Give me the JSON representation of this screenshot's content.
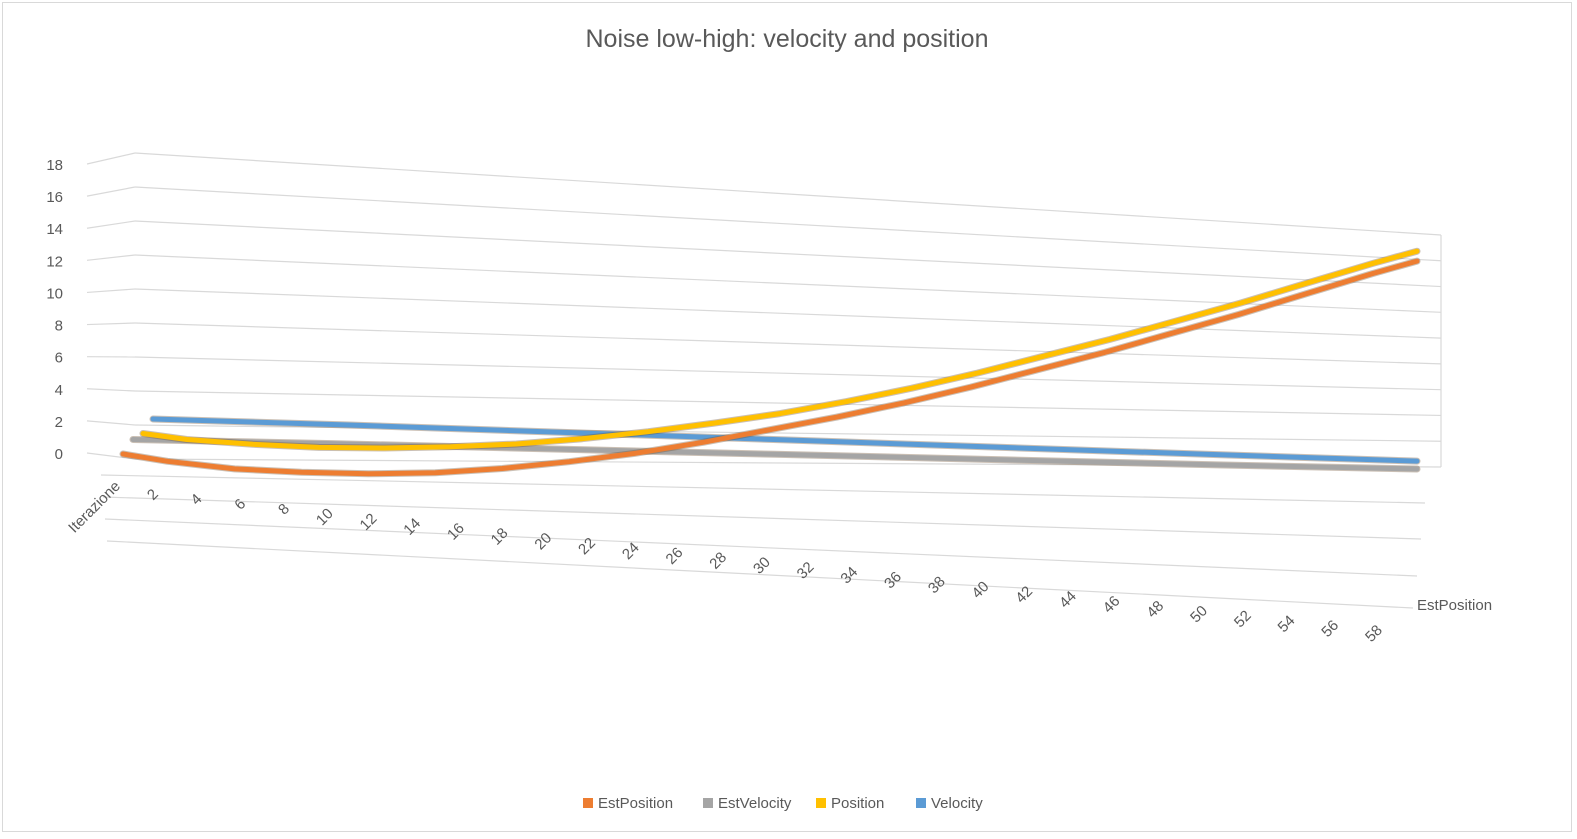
{
  "chart_data": {
    "type": "line",
    "variant": "3d-line",
    "title": "Noise low-high: velocity and position",
    "x_axis_title": "Iterazione",
    "depth_axis_label": "EstPosition",
    "x_ticks": [
      2,
      4,
      6,
      8,
      10,
      12,
      14,
      16,
      18,
      20,
      22,
      24,
      26,
      28,
      30,
      32,
      34,
      36,
      38,
      40,
      42,
      44,
      46,
      48,
      50,
      52,
      54,
      56,
      58
    ],
    "y_ticks": [
      0,
      2,
      4,
      6,
      8,
      10,
      12,
      14,
      16,
      18
    ],
    "ylim": [
      0,
      18
    ],
    "xlim": [
      1,
      59
    ],
    "grid": true,
    "legend_position": "bottom",
    "series": [
      {
        "name": "EstPosition",
        "color": "#ED7D31",
        "x": [
          1,
          3,
          6,
          9,
          12,
          15,
          18,
          21,
          24,
          27,
          30,
          33,
          36,
          39,
          42,
          45,
          48,
          51,
          54,
          57,
          59
        ],
        "values": [
          0.0,
          -0.4,
          -0.8,
          -0.95,
          -1.0,
          -0.9,
          -0.6,
          -0.15,
          0.4,
          1.1,
          1.9,
          2.7,
          3.6,
          4.6,
          5.7,
          6.8,
          8.0,
          9.2,
          10.5,
          11.8,
          12.6
        ]
      },
      {
        "name": "EstVelocity",
        "color": "#A5A5A5",
        "x": [
          1,
          10,
          20,
          30,
          40,
          50,
          59
        ],
        "values": [
          0.5,
          0.45,
          0.35,
          0.25,
          0.15,
          0.05,
          0.0
        ]
      },
      {
        "name": "Position",
        "color": "#FFC000",
        "x": [
          1,
          3,
          6,
          9,
          12,
          15,
          18,
          21,
          24,
          27,
          30,
          33,
          36,
          39,
          42,
          45,
          48,
          51,
          54,
          57,
          59
        ],
        "values": [
          0.5,
          0.2,
          0.0,
          -0.1,
          -0.05,
          0.1,
          0.35,
          0.75,
          1.25,
          1.85,
          2.5,
          3.3,
          4.2,
          5.2,
          6.3,
          7.4,
          8.6,
          9.8,
          11.1,
          12.4,
          13.2
        ]
      },
      {
        "name": "Velocity",
        "color": "#5B9BD5",
        "x": [
          1,
          10,
          20,
          30,
          40,
          50,
          59
        ],
        "values": [
          1.0,
          0.95,
          0.85,
          0.75,
          0.65,
          0.55,
          0.48
        ]
      }
    ]
  }
}
